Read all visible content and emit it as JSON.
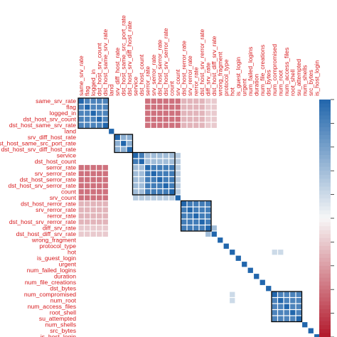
{
  "chart_data": {
    "type": "heatmap",
    "variables": [
      "same_srv_rate",
      "flag",
      "logged_in",
      "dst_host_srv_count",
      "dst_host_same_srv_rate",
      "land",
      "srv_diff_host_rate",
      "dst_host_same_src_port_rate",
      "dst_host_srv_diff_host_rate",
      "service",
      "dst_host_count",
      "serror_rate",
      "srv_serror_rate",
      "dst_host_serror_rate",
      "dst_host_srv_serror_rate",
      "count",
      "srv_count",
      "dst_host_rerror_rate",
      "srv_rerror_rate",
      "rerror_rate",
      "dst_host_srv_rerror_rate",
      "diff_srv_rate",
      "dst_host_diff_srv_rate",
      "wrong_fragment",
      "protocol_type",
      "hot",
      "is_guest_login",
      "urgent",
      "num_failed_logins",
      "duration",
      "num_file_creations",
      "dst_bytes",
      "num_compromised",
      "num_root",
      "num_access_files",
      "root_shell",
      "su_attempted",
      "num_shells",
      "src_bytes",
      "is_host_login"
    ],
    "clusters": [
      [
        0,
        4
      ],
      [
        6,
        8
      ],
      [
        9,
        15
      ],
      [
        17,
        21
      ],
      [
        32,
        36
      ]
    ],
    "block_correlations": [
      {
        "rows": [
          0,
          4
        ],
        "cols": [
          0,
          4
        ],
        "value": 0.8
      },
      {
        "rows": [
          0,
          4
        ],
        "cols": [
          11,
          16
        ],
        "value": -0.6
      },
      {
        "rows": [
          0,
          4
        ],
        "cols": [
          17,
          20
        ],
        "value": -0.3
      },
      {
        "rows": [
          0,
          4
        ],
        "cols": [
          21,
          22
        ],
        "value": -0.2
      },
      {
        "rows": [
          6,
          8
        ],
        "cols": [
          6,
          8
        ],
        "value": 0.5
      },
      {
        "rows": [
          9,
          15
        ],
        "cols": [
          9,
          15
        ],
        "value": 0.85
      },
      {
        "rows": [
          9,
          10
        ],
        "cols": [
          11,
          16
        ],
        "value": 0.4
      },
      {
        "rows": [
          16,
          16
        ],
        "cols": [
          9,
          15
        ],
        "value": 0.3
      },
      {
        "rows": [
          17,
          21
        ],
        "cols": [
          17,
          21
        ],
        "value": 0.85
      },
      {
        "rows": [
          21,
          22
        ],
        "cols": [
          21,
          22
        ],
        "value": 0.4
      },
      {
        "rows": [
          32,
          36
        ],
        "cols": [
          32,
          36
        ],
        "value": 0.8
      },
      {
        "rows": [
          32,
          33
        ],
        "cols": [
          25,
          25
        ],
        "value": 0.2
      }
    ],
    "color_scale": {
      "negative": "#b2182b",
      "mid": "#f7f7f7",
      "positive": "#2166ac"
    },
    "range": [
      -1,
      1
    ]
  },
  "colors": {
    "label": "#d7191c",
    "cluster_border": "#000000"
  }
}
